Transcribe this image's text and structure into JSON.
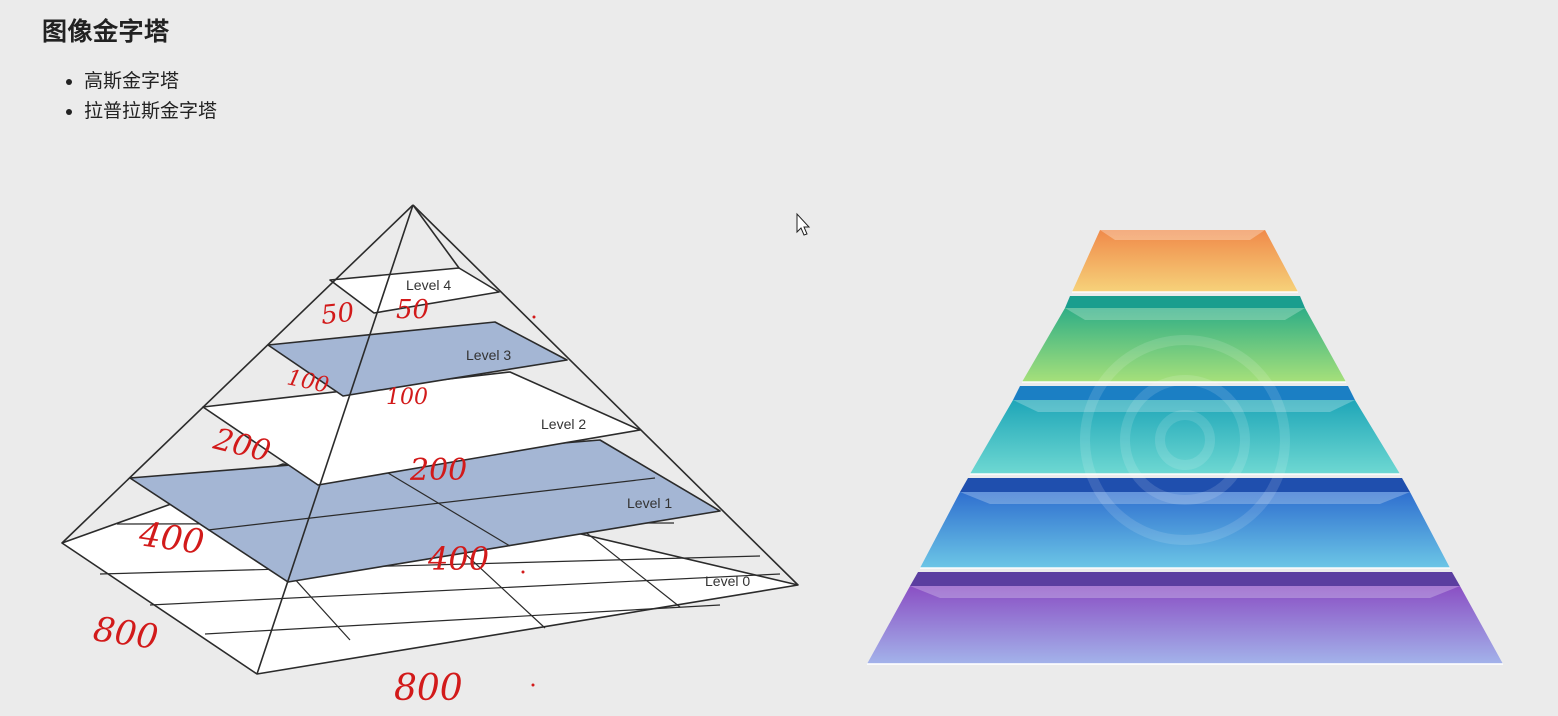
{
  "title": "图像金字塔",
  "topics": [
    "高斯金字塔",
    "拉普拉斯金字塔"
  ],
  "left_diagram": {
    "levels": [
      "Level 4",
      "Level 3",
      "Level 2",
      "Level 1",
      "Level 0"
    ],
    "handwritten_notes": [
      "50",
      "50",
      "100",
      "100",
      "200",
      "200",
      "400",
      "400",
      "800",
      "800"
    ],
    "shaded_color": "#a4b6d4",
    "ink_color": "#d21a1a"
  },
  "right_diagram": {
    "layer_colors": [
      "#f0a14a",
      "#4cc27a",
      "#2fb7c7",
      "#3f8fd6",
      "#8a5fcb"
    ]
  }
}
